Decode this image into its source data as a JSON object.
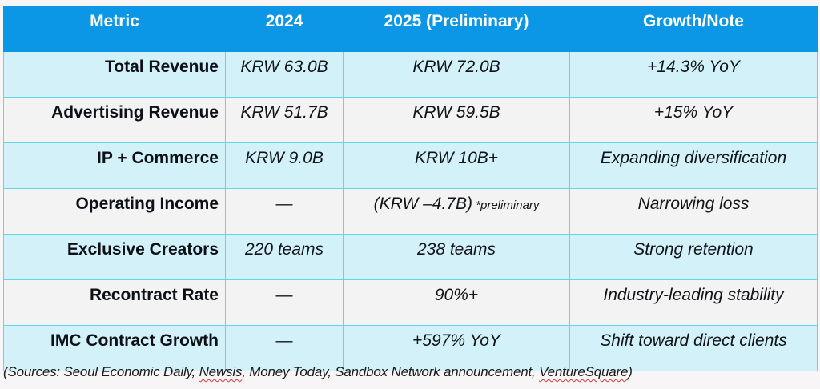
{
  "table": {
    "headers": [
      "Metric",
      "2024",
      "2025 (Preliminary)",
      "Growth/Note"
    ],
    "rows": [
      {
        "metric": "Total Revenue",
        "y2024": "KRW 63.0B",
        "y2025": "KRW 72.0B",
        "y2025_note": "",
        "growth": "+14.3% YoY"
      },
      {
        "metric": "Advertising Revenue",
        "y2024": "KRW 51.7B",
        "y2025": "KRW 59.5B",
        "y2025_note": "",
        "growth": "+15% YoY"
      },
      {
        "metric": "IP + Commerce",
        "y2024": "KRW 9.0B",
        "y2025": "KRW 10B+",
        "y2025_note": "",
        "growth": "Expanding diversification"
      },
      {
        "metric": "Operating Income",
        "y2024": "—",
        "y2025": "(KRW –4.7B)",
        "y2025_note": " *preliminary",
        "growth": "Narrowing loss"
      },
      {
        "metric": "Exclusive Creators",
        "y2024": "220 teams",
        "y2025": "238 teams",
        "y2025_note": "",
        "growth": "Strong retention"
      },
      {
        "metric": "Recontract Rate",
        "y2024": "—",
        "y2025": "90%+",
        "y2025_note": "",
        "growth": "Industry-leading stability"
      },
      {
        "metric": "IMC Contract Growth",
        "y2024": "—",
        "y2025": "+597% YoY",
        "y2025_note": "",
        "growth": "Shift toward direct clients"
      }
    ]
  },
  "footer": {
    "sources_prefix": "(Sources: Seoul Economic Daily, ",
    "sources_newsis": "Newsis",
    "sources_middle": ", Money Today, Sandbox Network announcement, ",
    "sources_venture": "VentureSquare",
    "sources_suffix": ")"
  },
  "colors": {
    "header_bg": "#0b96e6",
    "row_cyan": "#d3f1f8",
    "row_gray": "#f3f3f3",
    "grid": "#5fd6ea"
  }
}
